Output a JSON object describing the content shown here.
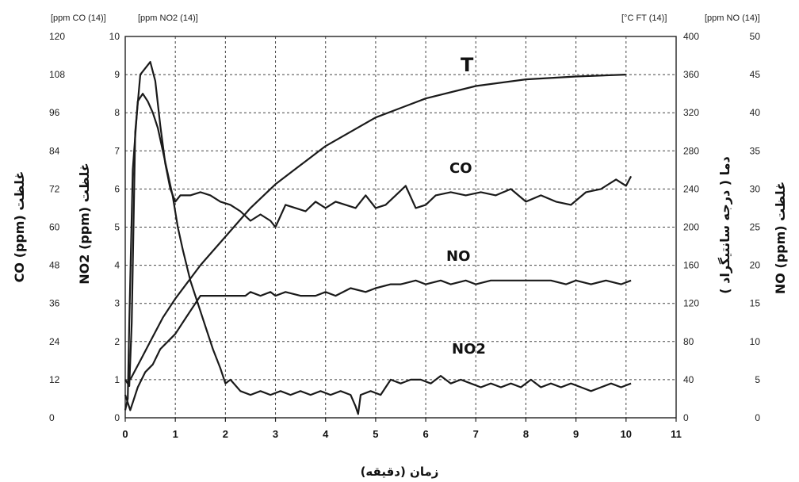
{
  "chart_data": {
    "type": "line",
    "xlabel": "زمان (دقیقه)",
    "xlim": [
      0,
      11
    ],
    "x_ticks": [
      "0",
      "1",
      "2",
      "3",
      "4",
      "5",
      "6",
      "7",
      "8",
      "9",
      "10",
      "11"
    ],
    "axes": {
      "co": {
        "unit": "[ppm CO (14)]",
        "label": "غلظت CO (ppm)",
        "lim": [
          0,
          120
        ],
        "ticks": [
          "0",
          "12",
          "24",
          "36",
          "48",
          "60",
          "72",
          "84",
          "96",
          "108",
          "120"
        ]
      },
      "no2": {
        "unit": "[ppm NO2 (14)]",
        "label": "غلظت NO2 (ppm)",
        "lim": [
          0,
          10
        ],
        "ticks": [
          "0",
          "1",
          "2",
          "3",
          "4",
          "5",
          "6",
          "7",
          "8",
          "9",
          "10"
        ]
      },
      "temp": {
        "unit": "[°C FT (14)]",
        "label": "دما ( درجه سانتیگراد )",
        "lim": [
          0,
          400
        ],
        "ticks": [
          "0",
          "40",
          "80",
          "120",
          "160",
          "200",
          "240",
          "280",
          "320",
          "360",
          "400"
        ]
      },
      "no": {
        "unit": "[ppm NO (14)]",
        "label": "غلظت NO (ppm)",
        "lim": [
          0,
          50
        ],
        "ticks": [
          "0",
          "5",
          "10",
          "15",
          "20",
          "25",
          "30",
          "35",
          "40",
          "45",
          "50"
        ]
      }
    },
    "series": [
      {
        "name": "T",
        "axis": "temp",
        "x": [
          0.1,
          0.3,
          0.5,
          0.75,
          1.0,
          1.5,
          2.0,
          2.5,
          3.0,
          3.5,
          4.0,
          5.0,
          6.0,
          7.0,
          8.0,
          9.0,
          10.0
        ],
        "y": [
          40,
          60,
          80,
          105,
          125,
          160,
          190,
          220,
          245,
          265,
          285,
          315,
          335,
          348,
          355,
          358,
          360
        ]
      },
      {
        "name": "CO",
        "axis": "co",
        "x": [
          0,
          0.08,
          0.13,
          0.2,
          0.3,
          0.4,
          0.5,
          0.6,
          0.7,
          0.8,
          0.9,
          1.0,
          1.1,
          1.3,
          1.5,
          1.7,
          1.9,
          2.1,
          2.3,
          2.5,
          2.7,
          2.9,
          3.0,
          3.2,
          3.4,
          3.6,
          3.8,
          4.0,
          4.2,
          4.4,
          4.6,
          4.8,
          5.0,
          5.2,
          5.4,
          5.6,
          5.8,
          6.0,
          6.2,
          6.5,
          6.8,
          7.1,
          7.4,
          7.7,
          8.0,
          8.3,
          8.6,
          8.9,
          9.2,
          9.5,
          9.8,
          10.0,
          10.1
        ],
        "y": [
          12,
          10,
          30,
          90,
          108,
          110,
          112,
          106,
          92,
          80,
          72,
          68,
          70,
          70,
          71,
          70,
          68,
          67,
          65,
          62,
          64,
          62,
          60,
          67,
          66,
          65,
          68,
          66,
          68,
          67,
          66,
          70,
          66,
          67,
          70,
          73,
          66,
          67,
          70,
          71,
          70,
          71,
          70,
          72,
          68,
          70,
          68,
          67,
          71,
          72,
          75,
          73,
          76
        ]
      },
      {
        "name": "NO",
        "axis": "no",
        "x": [
          0,
          0.1,
          0.15,
          0.25,
          0.4,
          0.55,
          0.7,
          0.85,
          1.0,
          1.2,
          1.4,
          1.5,
          1.8,
          2.1,
          2.4,
          2.5,
          2.7,
          2.9,
          3.0,
          3.2,
          3.5,
          3.8,
          4.0,
          4.2,
          4.5,
          4.8,
          5.0,
          5.3,
          5.5,
          5.8,
          6.0,
          6.3,
          6.5,
          6.8,
          7.0,
          7.3,
          7.5,
          8.0,
          8.5,
          8.8,
          9.0,
          9.3,
          9.6,
          9.9,
          10.1
        ],
        "y": [
          3,
          1,
          2,
          4,
          6,
          7,
          9,
          10,
          11,
          13,
          15,
          16,
          16,
          16,
          16,
          16.5,
          16,
          16.5,
          16,
          16.5,
          16,
          16,
          16.5,
          16,
          17,
          16.5,
          17,
          17.5,
          17.5,
          18,
          17.5,
          18,
          17.5,
          18,
          17.5,
          18,
          18,
          18,
          18,
          17.5,
          18,
          17.5,
          18,
          17.5,
          18
        ]
      },
      {
        "name": "NO2",
        "axis": "no2",
        "x": [
          0,
          0.05,
          0.08,
          0.15,
          0.25,
          0.35,
          0.45,
          0.55,
          0.65,
          0.75,
          0.85,
          0.95,
          1.05,
          1.15,
          1.3,
          1.45,
          1.6,
          1.75,
          1.9,
          2.0,
          2.1,
          2.3,
          2.5,
          2.7,
          2.9,
          3.1,
          3.3,
          3.5,
          3.7,
          3.9,
          4.1,
          4.3,
          4.5,
          4.6,
          4.65,
          4.7,
          4.9,
          5.1,
          5.3,
          5.5,
          5.7,
          5.9,
          6.1,
          6.3,
          6.5,
          6.7,
          6.9,
          7.1,
          7.3,
          7.5,
          7.7,
          7.9,
          8.1,
          8.3,
          8.5,
          8.7,
          8.9,
          9.1,
          9.3,
          9.5,
          9.7,
          9.9,
          10.1
        ],
        "y": [
          0.2,
          0.5,
          2.5,
          6.5,
          8.3,
          8.5,
          8.3,
          8.0,
          7.6,
          7.0,
          6.4,
          5.8,
          5.0,
          4.4,
          3.6,
          3.0,
          2.4,
          1.8,
          1.3,
          0.9,
          1.0,
          0.7,
          0.6,
          0.7,
          0.6,
          0.7,
          0.6,
          0.7,
          0.6,
          0.7,
          0.6,
          0.7,
          0.6,
          0.3,
          0.1,
          0.6,
          0.7,
          0.6,
          1.0,
          0.9,
          1.0,
          1.0,
          0.9,
          1.1,
          0.9,
          1.0,
          0.9,
          0.8,
          0.9,
          0.8,
          0.9,
          0.8,
          1.0,
          0.8,
          0.9,
          0.8,
          0.9,
          0.8,
          0.7,
          0.8,
          0.9,
          0.8,
          0.9
        ]
      }
    ]
  }
}
